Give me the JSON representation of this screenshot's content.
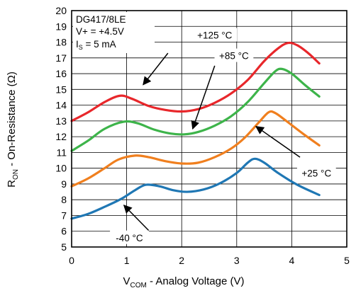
{
  "chart_data": {
    "type": "line",
    "info_box": [
      "DG417/8LE",
      "V+ = +4.5V",
      "I",
      "S",
      " = 5 mA"
    ],
    "xlabel": {
      "main": "V",
      "sub": "COM",
      "rest": " - Analog Voltage (V)"
    },
    "ylabel": {
      "main": "R",
      "sub": "ON",
      "rest": " - On-Resistance (Ω)"
    },
    "xlim": [
      0,
      5
    ],
    "ylim": [
      5,
      20
    ],
    "xticks": [
      0,
      1,
      2,
      3,
      4,
      5
    ],
    "yticks": [
      5,
      6,
      7,
      8,
      9,
      10,
      11,
      12,
      13,
      14,
      15,
      16,
      17,
      18,
      19,
      20
    ],
    "grid": true,
    "series": [
      {
        "name": "+125 °C",
        "color": "#e8272b",
        "points": [
          [
            0,
            13.0
          ],
          [
            0.3,
            13.55
          ],
          [
            0.6,
            14.2
          ],
          [
            0.88,
            14.6
          ],
          [
            1.1,
            14.4
          ],
          [
            1.4,
            13.95
          ],
          [
            1.7,
            13.7
          ],
          [
            2.0,
            13.6
          ],
          [
            2.3,
            13.75
          ],
          [
            2.6,
            14.15
          ],
          [
            2.9,
            14.75
          ],
          [
            3.2,
            15.6
          ],
          [
            3.5,
            16.8
          ],
          [
            3.75,
            17.6
          ],
          [
            3.93,
            17.95
          ],
          [
            4.1,
            17.8
          ],
          [
            4.3,
            17.3
          ],
          [
            4.5,
            16.65
          ]
        ]
      },
      {
        "name": "+85 °C",
        "color": "#3db44a",
        "points": [
          [
            0,
            11.1
          ],
          [
            0.3,
            11.75
          ],
          [
            0.6,
            12.5
          ],
          [
            0.95,
            12.95
          ],
          [
            1.2,
            12.85
          ],
          [
            1.5,
            12.45
          ],
          [
            1.8,
            12.2
          ],
          [
            2.05,
            12.15
          ],
          [
            2.3,
            12.3
          ],
          [
            2.6,
            12.7
          ],
          [
            2.9,
            13.3
          ],
          [
            3.2,
            14.2
          ],
          [
            3.5,
            15.4
          ],
          [
            3.7,
            16.15
          ],
          [
            3.82,
            16.3
          ],
          [
            4.0,
            16.0
          ],
          [
            4.25,
            15.25
          ],
          [
            4.5,
            14.55
          ]
        ]
      },
      {
        "name": "+25 °C",
        "color": "#f07f1e",
        "points": [
          [
            0,
            8.85
          ],
          [
            0.3,
            9.35
          ],
          [
            0.6,
            10.0
          ],
          [
            0.85,
            10.55
          ],
          [
            1.15,
            10.8
          ],
          [
            1.4,
            10.7
          ],
          [
            1.7,
            10.45
          ],
          [
            2.0,
            10.3
          ],
          [
            2.3,
            10.35
          ],
          [
            2.6,
            10.7
          ],
          [
            2.9,
            11.25
          ],
          [
            3.15,
            11.95
          ],
          [
            3.4,
            12.9
          ],
          [
            3.58,
            13.55
          ],
          [
            3.7,
            13.5
          ],
          [
            3.9,
            13.0
          ],
          [
            4.2,
            12.2
          ],
          [
            4.5,
            11.45
          ]
        ]
      },
      {
        "name": "-40 °C",
        "color": "#1f77b4",
        "points": [
          [
            0,
            6.8
          ],
          [
            0.3,
            7.1
          ],
          [
            0.6,
            7.55
          ],
          [
            0.9,
            8.05
          ],
          [
            1.15,
            8.6
          ],
          [
            1.35,
            8.95
          ],
          [
            1.6,
            8.85
          ],
          [
            1.85,
            8.6
          ],
          [
            2.1,
            8.5
          ],
          [
            2.4,
            8.65
          ],
          [
            2.7,
            9.05
          ],
          [
            3.0,
            9.7
          ],
          [
            3.2,
            10.35
          ],
          [
            3.33,
            10.6
          ],
          [
            3.5,
            10.35
          ],
          [
            3.75,
            9.7
          ],
          [
            4.1,
            8.95
          ],
          [
            4.5,
            8.3
          ]
        ]
      }
    ],
    "annotations": [
      {
        "label": "+125 °C",
        "text_at": [
          2.6,
          18.4
        ],
        "arrow_from": [
          1.75,
          17.3
        ],
        "arrow_to": [
          1.3,
          15.3
        ],
        "series": "+125 °C"
      },
      {
        "label": "+85 °C",
        "text_at": [
          2.95,
          17.1
        ],
        "arrow_from": [
          2.6,
          16.5
        ],
        "arrow_to": [
          2.2,
          12.5
        ],
        "series": "+85 °C"
      },
      {
        "label": "+25 °C",
        "text_at": [
          4.45,
          9.65
        ],
        "arrow_from": [
          4.15,
          10.7
        ],
        "arrow_to": [
          3.35,
          12.65
        ],
        "series": "+25 °C"
      },
      {
        "label": "-40 °C",
        "text_at": [
          1.05,
          5.55
        ],
        "arrow_from": [
          1.4,
          6.05
        ],
        "arrow_to": [
          0.95,
          7.65
        ],
        "series": "-40 °C"
      }
    ]
  }
}
